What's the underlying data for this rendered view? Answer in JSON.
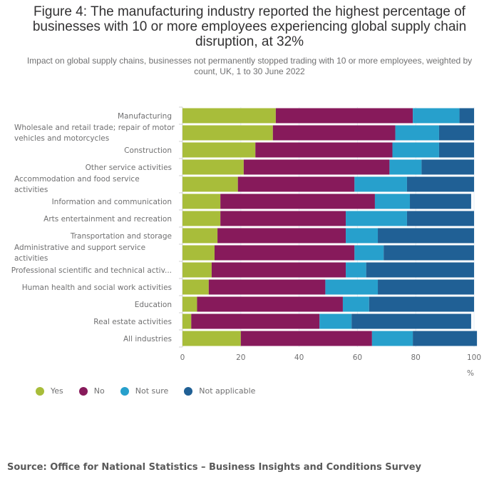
{
  "chart_data": {
    "type": "bar",
    "orientation": "horizontal",
    "stacked": true,
    "title": "Figure 4: The manufacturing industry reported the highest percentage of businesses with 10 or more employees experiencing global supply chain disruption, at 32%",
    "subtitle": "Impact on global supply chains, businesses not permanently stopped trading with 10 or more employees, weighted by count, UK, 1 to 30 June 2022",
    "xlabel": "%",
    "ylabel": "",
    "xlim": [
      0,
      100
    ],
    "xticks": [
      0,
      20,
      40,
      60,
      80,
      100
    ],
    "grid": true,
    "legend_position": "bottom-left",
    "categories": [
      [
        "Manufacturing"
      ],
      [
        "Wholesale and retail trade; repair of motor",
        "vehicles and motorcycles"
      ],
      [
        "Construction"
      ],
      [
        "Other service activities"
      ],
      [
        "Accommodation and food service",
        "activities"
      ],
      [
        "Information and communication"
      ],
      [
        "Arts entertainment and recreation"
      ],
      [
        "Transportation and storage"
      ],
      [
        "Administrative and support service",
        "activities"
      ],
      [
        "Professional scientific and technical activ..."
      ],
      [
        "Human health and social work activities"
      ],
      [
        "Education"
      ],
      [
        "Real estate activities"
      ],
      [
        "All industries"
      ]
    ],
    "series": [
      {
        "name": "Yes",
        "color": "#a8bd3a",
        "values": [
          32,
          31,
          25,
          21,
          19,
          13,
          13,
          12,
          11,
          10,
          9,
          5,
          3,
          20
        ]
      },
      {
        "name": "No",
        "color": "#871a5b",
        "values": [
          47,
          42,
          47,
          50,
          40,
          53,
          43,
          44,
          48,
          46,
          40,
          50,
          44,
          45
        ]
      },
      {
        "name": "Not sure",
        "color": "#27a0cc",
        "values": [
          16,
          15,
          16,
          11,
          18,
          12,
          21,
          11,
          10,
          7,
          18,
          9,
          11,
          14
        ]
      },
      {
        "name": "Not applicable",
        "color": "#206095",
        "values": [
          5,
          12,
          12,
          18,
          23,
          21,
          23,
          33,
          31,
          37,
          33,
          36,
          41,
          22
        ]
      }
    ]
  },
  "source": "Source: Office for National Statistics – Business Insights and Conditions Survey"
}
